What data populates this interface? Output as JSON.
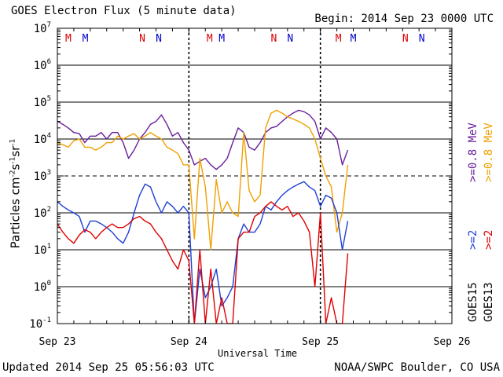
{
  "header": {
    "title": "GOES Electron Flux (5 minute data)",
    "begin": "Begin: 2014 Sep 23 0000 UTC"
  },
  "footer": {
    "updated": "Updated 2014 Sep 25 05:56:03 UTC",
    "credit": "NOAA/SWPC Boulder, CO USA"
  },
  "chart_data": {
    "type": "line",
    "title": "GOES Electron Flux (5 minute data)",
    "xlabel": "Universal Time",
    "ylabel": "Particles cm-2s-1sr-1",
    "y_scale": "log",
    "ylim": [
      0.1,
      10000000
    ],
    "xlim_hours": [
      0,
      72
    ],
    "x_ticks": [
      "Sep 23",
      "Sep 24",
      "Sep 25",
      "Sep 26"
    ],
    "y_ticks": [
      "10^-1",
      "10^0",
      "10^1",
      "10^2",
      "10^3",
      "10^4",
      "10^5",
      "10^6",
      "10^7"
    ],
    "grid": true,
    "threshold_line": 1000,
    "day_separators_hours": [
      24,
      48
    ],
    "markers": [
      {
        "label": "M",
        "x_hours": 2.0,
        "color": "#dd0000"
      },
      {
        "label": "M",
        "x_hours": 5.1,
        "color": "#0000cc"
      },
      {
        "label": "N",
        "x_hours": 15.5,
        "color": "#dd0000"
      },
      {
        "label": "N",
        "x_hours": 18.5,
        "color": "#0000cc"
      },
      {
        "label": "M",
        "x_hours": 27.8,
        "color": "#dd0000"
      },
      {
        "label": "M",
        "x_hours": 30.0,
        "color": "#0000cc"
      },
      {
        "label": "N",
        "x_hours": 39.5,
        "color": "#dd0000"
      },
      {
        "label": "N",
        "x_hours": 42.5,
        "color": "#0000cc"
      },
      {
        "label": "M",
        "x_hours": 51.3,
        "color": "#dd0000"
      },
      {
        "label": "M",
        "x_hours": 54.0,
        "color": "#0000cc"
      },
      {
        "label": "N",
        "x_hours": 63.5,
        "color": "#dd0000"
      },
      {
        "label": "N",
        "x_hours": 66.5,
        "color": "#0000cc"
      }
    ],
    "legend_groups": [
      {
        "name": "GOES15",
        "entries": [
          {
            "label": ">=2",
            "color": "#1f3fd6"
          },
          {
            "label": ">=0.8 MeV",
            "color": "#6a1f9a"
          }
        ]
      },
      {
        "name": "GOES13",
        "entries": [
          {
            "label": ">=2",
            "color": "#e00000"
          },
          {
            "label": ">=0.8 MeV",
            "color": "#f0a000"
          }
        ]
      }
    ],
    "series": [
      {
        "name": "GOES15 >=0.8 MeV",
        "color": "#6a1f9a",
        "x": [
          0,
          1,
          2,
          3,
          4,
          5,
          6,
          7,
          8,
          9,
          10,
          11,
          12,
          13,
          14,
          15,
          16,
          17,
          18,
          19,
          20,
          21,
          22,
          23,
          24,
          25,
          26,
          27,
          28,
          29,
          30,
          31,
          32,
          33,
          34,
          35,
          36,
          37,
          38,
          39,
          40,
          41,
          42,
          43,
          44,
          45,
          46,
          47,
          48,
          49,
          50,
          51,
          52,
          53
        ],
        "values": [
          30000,
          25000,
          20000,
          15000,
          14000,
          8000,
          12000,
          12000,
          15000,
          10000,
          15000,
          15000,
          8000,
          3000,
          5000,
          10000,
          15000,
          25000,
          30000,
          45000,
          25000,
          12000,
          15000,
          8000,
          5000,
          2000,
          2500,
          3000,
          2000,
          1500,
          2000,
          3000,
          8000,
          20000,
          15000,
          6000,
          5000,
          8000,
          15000,
          20000,
          22000,
          30000,
          40000,
          50000,
          60000,
          55000,
          45000,
          30000,
          10000,
          20000,
          15000,
          10000,
          2000,
          5000
        ]
      },
      {
        "name": "GOES13 >=0.8 MeV",
        "color": "#f0a000",
        "x": [
          0,
          1,
          2,
          3,
          4,
          5,
          6,
          7,
          8,
          9,
          10,
          11,
          12,
          13,
          14,
          15,
          16,
          17,
          18,
          19,
          20,
          21,
          22,
          23,
          24,
          25,
          26,
          27,
          28,
          29,
          30,
          31,
          32,
          33,
          34,
          35,
          36,
          37,
          38,
          39,
          40,
          41,
          42,
          43,
          44,
          45,
          46,
          47,
          48,
          49,
          50,
          51,
          52,
          53
        ],
        "values": [
          8000,
          7000,
          6000,
          9000,
          10000,
          6000,
          6000,
          5000,
          6000,
          8000,
          8000,
          12000,
          10000,
          12000,
          14000,
          10000,
          12000,
          15000,
          12000,
          10000,
          6000,
          5000,
          4000,
          2000,
          2000,
          20,
          3000,
          500,
          10,
          800,
          100,
          200,
          100,
          80,
          15000,
          400,
          200,
          300,
          20000,
          50000,
          60000,
          50000,
          40000,
          35000,
          30000,
          25000,
          20000,
          10000,
          3000,
          1000,
          500,
          30,
          100,
          2000
        ]
      },
      {
        "name": "GOES15 >=2 MeV",
        "color": "#1f3fd6",
        "x": [
          0,
          1,
          2,
          3,
          4,
          5,
          6,
          7,
          8,
          9,
          10,
          11,
          12,
          13,
          14,
          15,
          16,
          17,
          18,
          19,
          20,
          21,
          22,
          23,
          24,
          25,
          26,
          27,
          28,
          29,
          30,
          31,
          32,
          33,
          34,
          35,
          36,
          37,
          38,
          39,
          40,
          41,
          42,
          43,
          44,
          45,
          46,
          47,
          48,
          49,
          50,
          51,
          52,
          53
        ],
        "values": [
          200,
          150,
          120,
          100,
          80,
          30,
          60,
          60,
          50,
          40,
          30,
          20,
          15,
          30,
          100,
          300,
          600,
          500,
          200,
          100,
          200,
          150,
          100,
          150,
          100,
          0.1,
          3,
          0.5,
          1,
          3,
          0.3,
          0.5,
          1,
          20,
          50,
          30,
          30,
          50,
          150,
          120,
          200,
          300,
          400,
          500,
          600,
          700,
          500,
          400,
          150,
          300,
          250,
          100,
          10,
          60
        ]
      },
      {
        "name": "GOES13 >=2 MeV",
        "color": "#e00000",
        "x": [
          0,
          1,
          2,
          3,
          4,
          5,
          6,
          7,
          8,
          9,
          10,
          11,
          12,
          13,
          14,
          15,
          16,
          17,
          18,
          19,
          20,
          21,
          22,
          23,
          24,
          25,
          26,
          27,
          28,
          29,
          30,
          31,
          32,
          33,
          34,
          35,
          36,
          37,
          38,
          39,
          40,
          41,
          42,
          43,
          44,
          45,
          46,
          47,
          48,
          49,
          50,
          51,
          52,
          53
        ],
        "values": [
          50,
          30,
          20,
          15,
          25,
          35,
          30,
          20,
          30,
          40,
          50,
          40,
          40,
          50,
          70,
          80,
          60,
          50,
          30,
          20,
          10,
          5,
          3,
          10,
          5,
          0.1,
          10,
          0.1,
          3,
          0.1,
          0.5,
          0.1,
          0.1,
          20,
          30,
          30,
          80,
          100,
          150,
          200,
          150,
          120,
          150,
          80,
          100,
          60,
          30,
          1,
          100,
          0.1,
          0.5,
          0.1,
          0.1,
          8
        ]
      }
    ]
  }
}
